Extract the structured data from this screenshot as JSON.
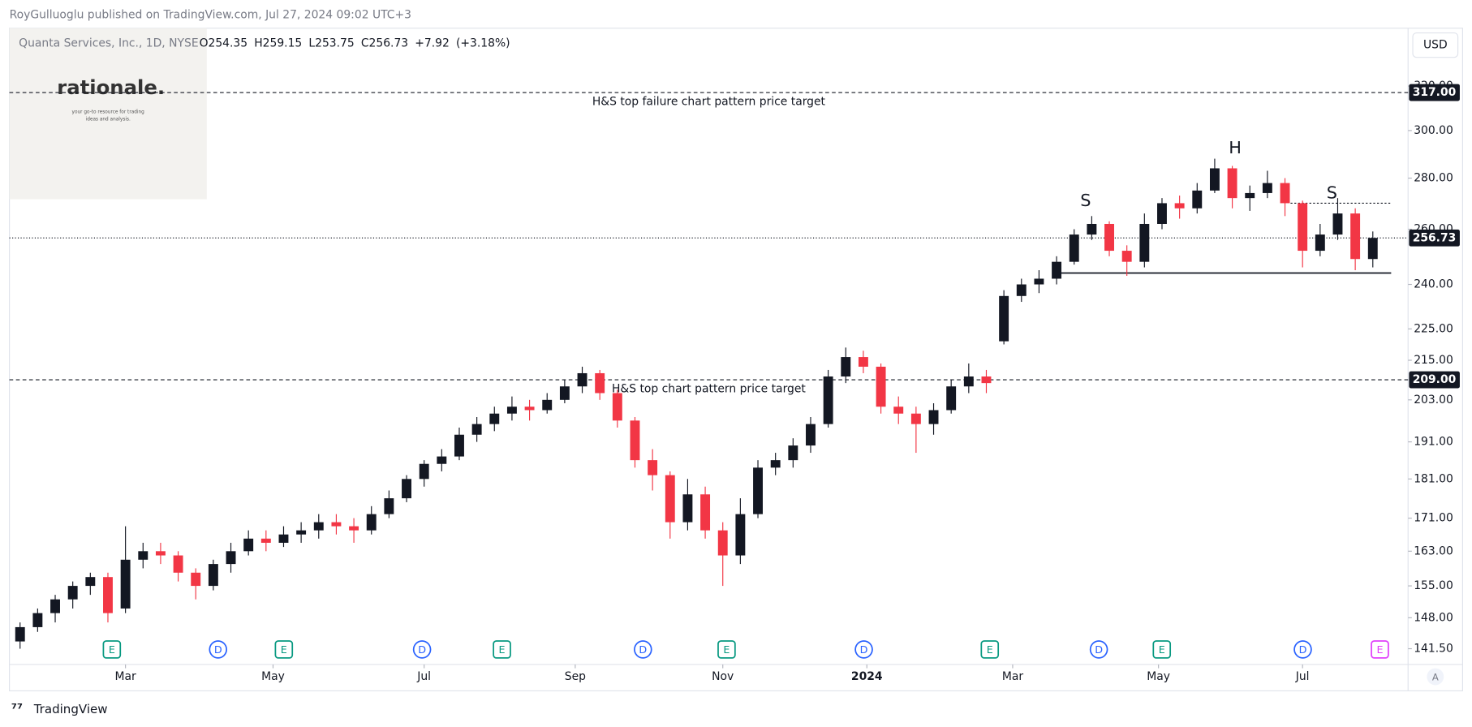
{
  "chart_data": {
    "type": "candlestick",
    "published": "RoyGulluoglu published on TradingView.com, Jul 27, 2024 09:02 UTC+3",
    "symbol": "Quanta Services, Inc., 1D, NYSE",
    "header_ohlc": [
      {
        "value": 254.35,
        "label": "O254.35"
      },
      {
        "value": 259.15,
        "label": "H259.15"
      },
      {
        "value": 253.75,
        "label": "L253.75"
      },
      {
        "value": 256.73,
        "label": "C256.73"
      },
      {
        "value": 7.92,
        "label": "+7.92"
      },
      {
        "value": 3.18,
        "label": "(+3.18%)"
      }
    ],
    "logo": {
      "title": "rationale.",
      "tagline_1": "your go-to resource for trading",
      "tagline_2": "ideas and analysis."
    },
    "currency": "USD",
    "brand": "TradingView",
    "auto_label": "A",
    "up_color": "#131722",
    "down_color": "#f23645",
    "log_scale": true,
    "ylim": [
      138.3,
      348
    ],
    "yticks": [
      {
        "value": 141.5,
        "label": "141.50"
      },
      {
        "value": 148,
        "label": "148.00"
      },
      {
        "value": 155,
        "label": "155.00"
      },
      {
        "value": 163,
        "label": "163.00"
      },
      {
        "value": 171,
        "label": "171.00"
      },
      {
        "value": 181,
        "label": "181.00"
      },
      {
        "value": 191,
        "label": "191.00"
      },
      {
        "value": 203,
        "label": "203.00"
      },
      {
        "value": 215,
        "label": "215.00"
      },
      {
        "value": 225,
        "label": "225.00"
      },
      {
        "value": 240,
        "label": "240.00"
      },
      {
        "value": 260,
        "label": "260.00"
      },
      {
        "value": 280,
        "label": "280.00"
      },
      {
        "value": 300,
        "label": "300.00"
      },
      {
        "value": 320,
        "label": "320.00"
      }
    ],
    "xlim": [
      0,
      79.4
    ],
    "xticks": [
      {
        "value": 6.5,
        "label": "Mar"
      },
      {
        "value": 14.9,
        "label": "May"
      },
      {
        "value": 23.5,
        "label": "Jul"
      },
      {
        "value": 32.1,
        "label": "Sep"
      },
      {
        "value": 40.5,
        "label": "Nov"
      },
      {
        "value": 48.7,
        "label": "2024"
      },
      {
        "value": 57,
        "label": "Mar"
      },
      {
        "value": 65.3,
        "label": "May"
      },
      {
        "value": 73.5,
        "label": "Jul"
      }
    ],
    "ohlc": [
      [
        143,
        147,
        141.5,
        146
      ],
      [
        146,
        150,
        145,
        149
      ],
      [
        149,
        153,
        147,
        152
      ],
      [
        152,
        156,
        150,
        155
      ],
      [
        155,
        158,
        153,
        157
      ],
      [
        157,
        158,
        147,
        149
      ],
      [
        150,
        169,
        149,
        161
      ],
      [
        161,
        165,
        159,
        163
      ],
      [
        163,
        165,
        160,
        162
      ],
      [
        162,
        163,
        156,
        158
      ],
      [
        158,
        159,
        152,
        155
      ],
      [
        155,
        161,
        154,
        160
      ],
      [
        160,
        165,
        158,
        163
      ],
      [
        163,
        168,
        162,
        166
      ],
      [
        166,
        168,
        163,
        165
      ],
      [
        165,
        169,
        164,
        167
      ],
      [
        167,
        170,
        165,
        168
      ],
      [
        168,
        172,
        166,
        170
      ],
      [
        170,
        172,
        167,
        169
      ],
      [
        169,
        171,
        165,
        168
      ],
      [
        168,
        174,
        167,
        172
      ],
      [
        172,
        178,
        171,
        176
      ],
      [
        176,
        182,
        175,
        181
      ],
      [
        181,
        186,
        179,
        185
      ],
      [
        185,
        189,
        183,
        187
      ],
      [
        187,
        195,
        186,
        193
      ],
      [
        193,
        198,
        191,
        196
      ],
      [
        196,
        201,
        194,
        199
      ],
      [
        199,
        204,
        197,
        201
      ],
      [
        201,
        203,
        197,
        200
      ],
      [
        200,
        205,
        199,
        203
      ],
      [
        203,
        209,
        202,
        207
      ],
      [
        207,
        213,
        205,
        211
      ],
      [
        211,
        212,
        203,
        205
      ],
      [
        205,
        206,
        195,
        197
      ],
      [
        197,
        198,
        184,
        186
      ],
      [
        186,
        189,
        178,
        182
      ],
      [
        182,
        183,
        166,
        170
      ],
      [
        170,
        181,
        168,
        177
      ],
      [
        177,
        179,
        166,
        168
      ],
      [
        168,
        170,
        155,
        162
      ],
      [
        162,
        176,
        160,
        172
      ],
      [
        172,
        186,
        171,
        184
      ],
      [
        184,
        188,
        182,
        186
      ],
      [
        186,
        192,
        184,
        190
      ],
      [
        190,
        198,
        188,
        196
      ],
      [
        196,
        212,
        195,
        210
      ],
      [
        210,
        219,
        208,
        216
      ],
      [
        216,
        218,
        211,
        213
      ],
      [
        213,
        214,
        199,
        201
      ],
      [
        201,
        204,
        196,
        199
      ],
      [
        199,
        201,
        188,
        196
      ],
      [
        196,
        202,
        193,
        200
      ],
      [
        200,
        209,
        199,
        207
      ],
      [
        207,
        214,
        205,
        210
      ],
      [
        210,
        212,
        205,
        208
      ],
      [
        221,
        238,
        220,
        236
      ],
      [
        236,
        242,
        234,
        240
      ],
      [
        240,
        245,
        237,
        242
      ],
      [
        242,
        250,
        240,
        248
      ],
      [
        248,
        260,
        247,
        258
      ],
      [
        258,
        265,
        256,
        262
      ],
      [
        262,
        263,
        250,
        252
      ],
      [
        252,
        254,
        243,
        248
      ],
      [
        248,
        266,
        246,
        262
      ],
      [
        262,
        272,
        260,
        270
      ],
      [
        270,
        273,
        264,
        268
      ],
      [
        268,
        278,
        266,
        275
      ],
      [
        275,
        288,
        274,
        284
      ],
      [
        284,
        285,
        268,
        272
      ],
      [
        272,
        277,
        267,
        274
      ],
      [
        274,
        283,
        272,
        278
      ],
      [
        278,
        280,
        265,
        270
      ],
      [
        270,
        271,
        246,
        252
      ],
      [
        252,
        262,
        250,
        258
      ],
      [
        258,
        272,
        256,
        266
      ],
      [
        266,
        268,
        245,
        249
      ],
      [
        249,
        259.15,
        246,
        256.73
      ]
    ],
    "levels": [
      {
        "value": 317,
        "label": "317.00",
        "text": "H&S top failure chart pattern price target"
      },
      {
        "value": 209,
        "label": "209.00",
        "text": "H&S top chart pattern price target"
      }
    ],
    "last_price": {
      "value": 256.73,
      "label": "256.73"
    },
    "neckline": 244,
    "shoulder_line": 270,
    "pattern_labels": [
      "S",
      "H",
      "S"
    ],
    "event_markers": [
      "E",
      "D",
      "E",
      "D",
      "E",
      "D",
      "E",
      "D",
      "E",
      "D",
      "E",
      "D",
      "E"
    ]
  }
}
